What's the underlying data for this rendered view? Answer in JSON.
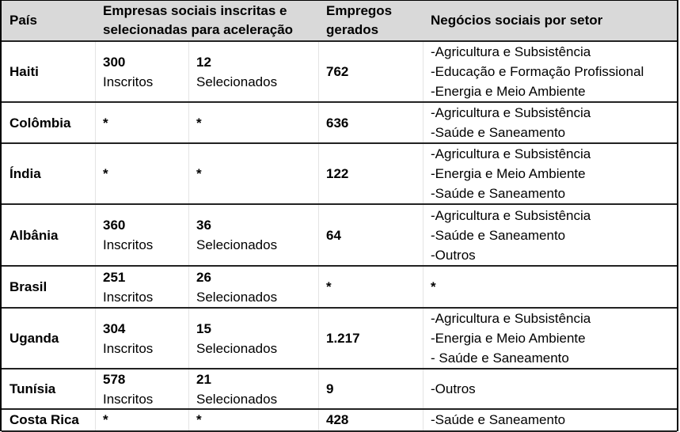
{
  "table": {
    "headers": {
      "pais": "País",
      "empresas_line1": "Empresas sociais inscritas e",
      "empresas_line2": "selecionadas para aceleração",
      "empregos_line1": "Empregos",
      "empregos_line2": "gerados",
      "setor": "Negócios sociais por setor"
    },
    "header_bg_color": "#d9d9d9",
    "rows": [
      {
        "pais": "Haiti",
        "inscritos_num": "300",
        "inscritos_label": "Inscritos",
        "selecionados_num": "12",
        "selecionados_label": "Selecionados",
        "empregos": "762",
        "setores": [
          "-Agricultura e Subsistência",
          "-Educação e Formação Profissional",
          "-Energia e Meio Ambiente"
        ]
      },
      {
        "pais": "Colômbia",
        "inscritos_num": "*",
        "inscritos_label": "",
        "selecionados_num": "*",
        "selecionados_label": "",
        "empregos": "636",
        "setores": [
          "-Agricultura e Subsistência",
          "-Saúde e Saneamento"
        ]
      },
      {
        "pais": "Índia",
        "inscritos_num": "*",
        "inscritos_label": "",
        "selecionados_num": "*",
        "selecionados_label": "",
        "empregos": "122",
        "setores": [
          "-Agricultura e Subsistência",
          "-Energia e Meio Ambiente",
          "-Saúde e Saneamento"
        ]
      },
      {
        "pais": "Albânia",
        "inscritos_num": "360",
        "inscritos_label": "Inscritos",
        "selecionados_num": "36",
        "selecionados_label": "Selecionados",
        "empregos": "64",
        "setores": [
          "-Agricultura e Subsistência",
          "-Saúde e Saneamento",
          "-Outros"
        ]
      },
      {
        "pais": "Brasil",
        "inscritos_num": "251",
        "inscritos_label": "Inscritos",
        "selecionados_num": "26",
        "selecionados_label": "Selecionados",
        "empregos": "*",
        "setores": [
          "*"
        ]
      },
      {
        "pais": "Uganda",
        "inscritos_num": "304",
        "inscritos_label": "Inscritos",
        "selecionados_num": "15",
        "selecionados_label": "Selecionados",
        "empregos": "1.217",
        "setores": [
          "-Agricultura e Subsistência",
          "-Energia e Meio Ambiente",
          "- Saúde e Saneamento"
        ]
      },
      {
        "pais": "Tunísia",
        "inscritos_num": "578",
        "inscritos_label": "Inscritos",
        "selecionados_num": "21",
        "selecionados_label": "Selecionados",
        "empregos": "9",
        "setores": [
          "-Outros"
        ]
      },
      {
        "pais": "Costa Rica",
        "inscritos_num": "*",
        "inscritos_label": "",
        "selecionados_num": "*",
        "selecionados_label": "",
        "empregos": "428",
        "setores": [
          "-Saúde e Saneamento"
        ]
      }
    ]
  }
}
